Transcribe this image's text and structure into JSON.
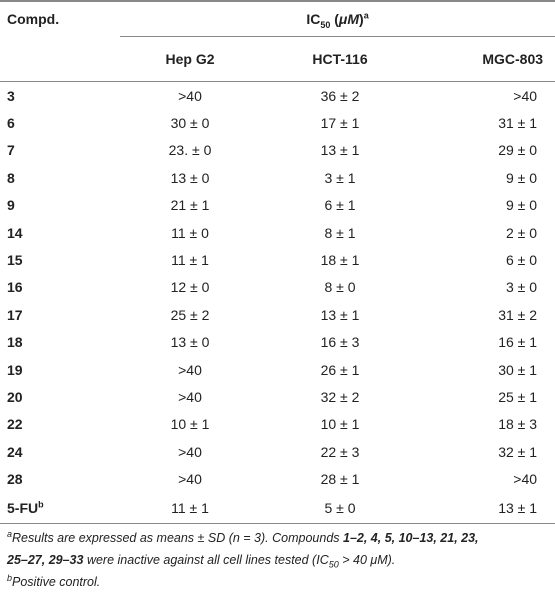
{
  "header": {
    "compd": "Compd.",
    "ic50": [
      "IC",
      "50",
      " (",
      "μM",
      ")",
      "a"
    ],
    "columns": [
      "Hep G2",
      "HCT-116",
      "MGC-803"
    ]
  },
  "rows": [
    {
      "compd": "3",
      "values": [
        ">40",
        "36 ± 2",
        ">40"
      ]
    },
    {
      "compd": "6",
      "values": [
        "30 ± 0",
        "17 ± 1",
        "31 ± 1"
      ]
    },
    {
      "compd": "7",
      "values": [
        "23. ± 0",
        "13 ± 1",
        "29 ± 0"
      ]
    },
    {
      "compd": "8",
      "values": [
        "13 ± 0",
        "3 ± 1",
        "9 ± 0"
      ]
    },
    {
      "compd": "9",
      "values": [
        "21 ± 1",
        "6 ± 1",
        "9 ± 0"
      ]
    },
    {
      "compd": "14",
      "values": [
        "11 ± 0",
        "8 ± 1",
        "2 ± 0"
      ]
    },
    {
      "compd": "15",
      "values": [
        "11 ± 1",
        "18 ± 1",
        "6 ± 0"
      ]
    },
    {
      "compd": "16",
      "values": [
        "12 ± 0",
        "8 ± 0",
        "3 ± 0"
      ]
    },
    {
      "compd": "17",
      "values": [
        "25 ± 2",
        "13 ± 1",
        "31 ± 2"
      ]
    },
    {
      "compd": "18",
      "values": [
        "13 ± 0",
        "16 ± 3",
        "16 ± 1"
      ]
    },
    {
      "compd": "19",
      "values": [
        ">40",
        "26 ± 1",
        "30 ± 1"
      ]
    },
    {
      "compd": "20",
      "values": [
        ">40",
        "32 ± 2",
        "25 ± 1"
      ]
    },
    {
      "compd": "22",
      "values": [
        "10 ± 1",
        "10 ± 1",
        "18 ± 3"
      ]
    },
    {
      "compd": "24",
      "values": [
        ">40",
        "22 ± 3",
        "32 ± 1"
      ]
    },
    {
      "compd": "28",
      "values": [
        ">40",
        "28 ± 1",
        ">40"
      ]
    },
    {
      "compd": "5-FU",
      "note": "b",
      "values": [
        "11 ± 1",
        "5 ± 0",
        "13 ± 1"
      ]
    }
  ],
  "notes": [
    [
      "a",
      "Results are expressed as means ± SD (",
      "n",
      " = 3). Compounds ",
      "1–2, 4, 5, 10–13, 21, 23,",
      "25–27, 29–33",
      " were inactive against all cell lines tested (IC",
      "50",
      " > 40 μM)."
    ],
    [
      "b",
      "Positive control."
    ]
  ]
}
